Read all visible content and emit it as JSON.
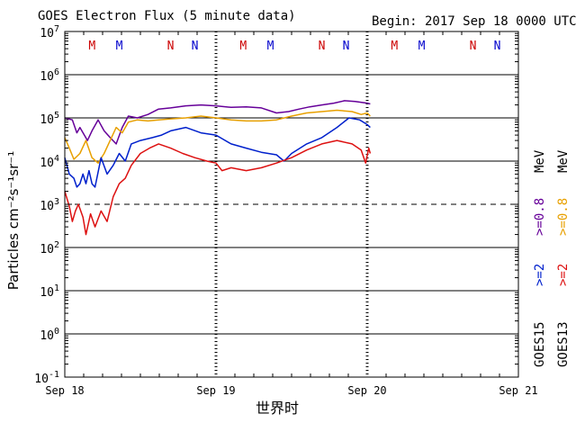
{
  "chart_data": {
    "type": "line",
    "title": "GOES Electron Flux (5 minute data)",
    "begin_label": "Begin: 2017 Sep 18 0000 UTC",
    "xlabel": "世界时",
    "ylabel": "Particles cm⁻²s⁻¹sr⁻¹",
    "x_ticks": [
      "Sep 18",
      "Sep 19",
      "Sep 20",
      "Sep 21"
    ],
    "x_range_days": [
      0,
      3
    ],
    "y_scale": "log",
    "ylim": [
      0.1,
      10000000
    ],
    "y_tick_labels": [
      {
        "base": "10",
        "exp": "7"
      },
      {
        "base": "10",
        "exp": "6"
      },
      {
        "base": "10",
        "exp": "5"
      },
      {
        "base": "10",
        "exp": "4"
      },
      {
        "base": "10",
        "exp": "3"
      },
      {
        "base": "10",
        "exp": "2"
      },
      {
        "base": "10",
        "exp": "1"
      },
      {
        "base": "10",
        "exp": "0"
      },
      {
        "base": "10",
        "exp": "-1"
      }
    ],
    "threshold_value": 1000,
    "markers": [
      {
        "label": "M",
        "color": "#cc0000",
        "day": 0.18
      },
      {
        "label": "M",
        "color": "#0000cc",
        "day": 0.36
      },
      {
        "label": "N",
        "color": "#cc0000",
        "day": 0.7
      },
      {
        "label": "N",
        "color": "#0000cc",
        "day": 0.86
      },
      {
        "label": "M",
        "color": "#cc0000",
        "day": 1.18
      },
      {
        "label": "M",
        "color": "#0000cc",
        "day": 1.36
      },
      {
        "label": "N",
        "color": "#cc0000",
        "day": 1.7
      },
      {
        "label": "N",
        "color": "#0000cc",
        "day": 1.86
      },
      {
        "label": "M",
        "color": "#cc0000",
        "day": 2.18
      },
      {
        "label": "M",
        "color": "#0000cc",
        "day": 2.36
      },
      {
        "label": "N",
        "color": "#cc0000",
        "day": 2.7
      },
      {
        "label": "N",
        "color": "#0000cc",
        "day": 2.86
      }
    ],
    "legend": {
      "goes15_label": "GOES15",
      "goes13_label": "GOES13",
      "g15_2mev": ">=2",
      "g15_08mev": ">=0.8",
      "g13_2mev": ">=2",
      "g13_08mev": ">=0.8",
      "unit": "MeV"
    },
    "series": [
      {
        "name": "GOES15 >=0.8 MeV",
        "color": "#660099",
        "points": [
          [
            0.0,
            100000
          ],
          [
            0.05,
            90000
          ],
          [
            0.08,
            45000
          ],
          [
            0.1,
            60000
          ],
          [
            0.15,
            30000
          ],
          [
            0.18,
            50000
          ],
          [
            0.22,
            90000
          ],
          [
            0.26,
            50000
          ],
          [
            0.3,
            35000
          ],
          [
            0.34,
            25000
          ],
          [
            0.38,
            60000
          ],
          [
            0.42,
            110000
          ],
          [
            0.48,
            100000
          ],
          [
            0.55,
            120000
          ],
          [
            0.62,
            160000
          ],
          [
            0.7,
            170000
          ],
          [
            0.8,
            190000
          ],
          [
            0.9,
            200000
          ],
          [
            1.0,
            190000
          ],
          [
            1.1,
            175000
          ],
          [
            1.2,
            180000
          ],
          [
            1.3,
            170000
          ],
          [
            1.4,
            130000
          ],
          [
            1.48,
            140000
          ],
          [
            1.55,
            160000
          ],
          [
            1.62,
            180000
          ],
          [
            1.7,
            200000
          ],
          [
            1.78,
            220000
          ],
          [
            1.85,
            250000
          ],
          [
            1.92,
            240000
          ],
          [
            2.0,
            220000
          ],
          [
            2.02,
            210000
          ]
        ]
      },
      {
        "name": "GOES13 >=0.8 MeV",
        "color": "#e8a000",
        "points": [
          [
            0.0,
            35000
          ],
          [
            0.03,
            20000
          ],
          [
            0.06,
            11000
          ],
          [
            0.1,
            15000
          ],
          [
            0.14,
            30000
          ],
          [
            0.18,
            12000
          ],
          [
            0.22,
            9000
          ],
          [
            0.26,
            15000
          ],
          [
            0.3,
            30000
          ],
          [
            0.34,
            60000
          ],
          [
            0.38,
            45000
          ],
          [
            0.42,
            80000
          ],
          [
            0.48,
            90000
          ],
          [
            0.55,
            85000
          ],
          [
            0.62,
            90000
          ],
          [
            0.7,
            95000
          ],
          [
            0.8,
            100000
          ],
          [
            0.9,
            110000
          ],
          [
            1.0,
            100000
          ],
          [
            1.1,
            90000
          ],
          [
            1.2,
            85000
          ],
          [
            1.3,
            85000
          ],
          [
            1.4,
            90000
          ],
          [
            1.5,
            110000
          ],
          [
            1.6,
            130000
          ],
          [
            1.7,
            140000
          ],
          [
            1.8,
            150000
          ],
          [
            1.9,
            140000
          ],
          [
            1.96,
            120000
          ],
          [
            2.0,
            130000
          ],
          [
            2.02,
            110000
          ]
        ]
      },
      {
        "name": "GOES15 >=2 MeV",
        "color": "#0020cc",
        "points": [
          [
            0.0,
            12000
          ],
          [
            0.03,
            5000
          ],
          [
            0.06,
            4000
          ],
          [
            0.08,
            2500
          ],
          [
            0.1,
            3000
          ],
          [
            0.12,
            5000
          ],
          [
            0.14,
            3000
          ],
          [
            0.16,
            6000
          ],
          [
            0.18,
            3000
          ],
          [
            0.2,
            2500
          ],
          [
            0.24,
            12000
          ],
          [
            0.28,
            5000
          ],
          [
            0.32,
            8000
          ],
          [
            0.36,
            15000
          ],
          [
            0.4,
            10000
          ],
          [
            0.44,
            25000
          ],
          [
            0.5,
            30000
          ],
          [
            0.58,
            35000
          ],
          [
            0.64,
            40000
          ],
          [
            0.7,
            50000
          ],
          [
            0.8,
            60000
          ],
          [
            0.9,
            45000
          ],
          [
            1.0,
            40000
          ],
          [
            1.1,
            25000
          ],
          [
            1.2,
            20000
          ],
          [
            1.3,
            16000
          ],
          [
            1.4,
            14000
          ],
          [
            1.45,
            10000
          ],
          [
            1.5,
            15000
          ],
          [
            1.6,
            25000
          ],
          [
            1.7,
            35000
          ],
          [
            1.8,
            60000
          ],
          [
            1.88,
            100000
          ],
          [
            1.95,
            90000
          ],
          [
            2.0,
            70000
          ],
          [
            2.02,
            60000
          ]
        ]
      },
      {
        "name": "GOES13 >=2 MeV",
        "color": "#dd1111",
        "points": [
          [
            0.0,
            2000
          ],
          [
            0.03,
            900
          ],
          [
            0.05,
            400
          ],
          [
            0.07,
            700
          ],
          [
            0.09,
            1000
          ],
          [
            0.12,
            500
          ],
          [
            0.14,
            200
          ],
          [
            0.17,
            600
          ],
          [
            0.2,
            300
          ],
          [
            0.24,
            700
          ],
          [
            0.28,
            400
          ],
          [
            0.32,
            1500
          ],
          [
            0.36,
            3000
          ],
          [
            0.4,
            4000
          ],
          [
            0.44,
            8000
          ],
          [
            0.5,
            15000
          ],
          [
            0.56,
            20000
          ],
          [
            0.62,
            25000
          ],
          [
            0.7,
            20000
          ],
          [
            0.78,
            15000
          ],
          [
            0.86,
            12000
          ],
          [
            0.94,
            10000
          ],
          [
            1.0,
            9000
          ],
          [
            1.04,
            6000
          ],
          [
            1.1,
            7000
          ],
          [
            1.2,
            6000
          ],
          [
            1.3,
            7000
          ],
          [
            1.4,
            9000
          ],
          [
            1.5,
            12000
          ],
          [
            1.6,
            18000
          ],
          [
            1.7,
            25000
          ],
          [
            1.8,
            30000
          ],
          [
            1.9,
            25000
          ],
          [
            1.96,
            18000
          ],
          [
            1.99,
            9000
          ],
          [
            2.01,
            20000
          ],
          [
            2.02,
            15000
          ]
        ]
      }
    ]
  }
}
